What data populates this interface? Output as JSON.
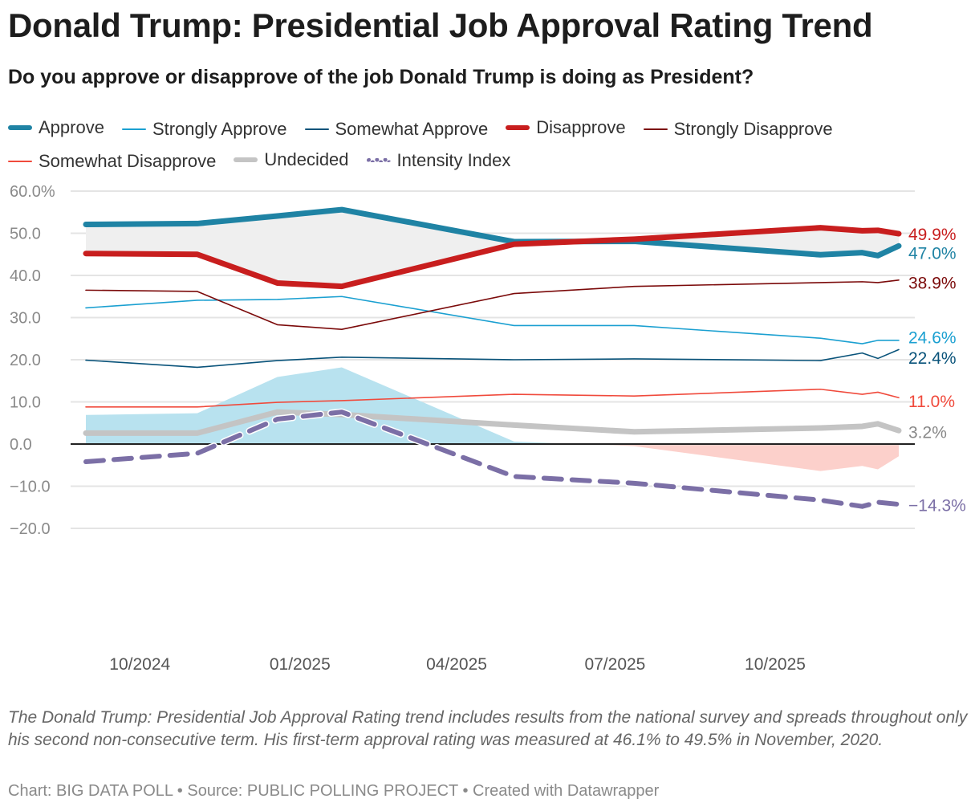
{
  "title": "Donald Trump: Presidential Job Approval Rating Trend",
  "subtitle": "Do you approve or disapprove of the job Donald Trump is doing as President?",
  "note": "The Donald Trump: Presidential Job Approval Rating trend includes results from the national survey and spreads throughout only his second non-consecutive term. His first-term approval rating was measured at 46.1% to 49.5% in November, 2020.",
  "credit": "Chart: BIG DATA POLL • Source: PUBLIC POLLING PROJECT • Created with Datawrapper",
  "chart_data": {
    "type": "line",
    "ylim": [
      -20,
      60
    ],
    "y_ticks": [
      "60.0%",
      "50.0",
      "40.0",
      "30.0",
      "20.0",
      "10.0",
      "0.0",
      "−10.0",
      "−20.0"
    ],
    "y_tick_values": [
      60,
      50,
      40,
      30,
      20,
      10,
      0,
      -10,
      -20
    ],
    "x_ticks": [
      "10/2024",
      "01/2025",
      "04/2025",
      "07/2025",
      "10/2025"
    ],
    "x_tick_dates": [
      "2024-10-01",
      "2025-01-01",
      "2025-04-01",
      "2025-07-01",
      "2025-10-01"
    ],
    "xlim": [
      "2024-08-31",
      "2025-12-11"
    ],
    "grid": true,
    "legend": "top",
    "x": [
      "2024-08-31",
      "2024-11-03",
      "2024-12-19",
      "2025-01-25",
      "2025-05-04",
      "2025-07-12",
      "2025-10-27",
      "2025-11-20",
      "2025-11-29",
      "2025-12-11"
    ],
    "areas": [
      {
        "between": [
          "Approve",
          "Disapprove"
        ],
        "color": "#efefef"
      },
      {
        "net": [
          "Approve",
          "Disapprove"
        ],
        "positive_color": "#b8e2ef",
        "negative_color": "#fcd0cb"
      }
    ],
    "series": [
      {
        "name": "Approve",
        "color": "#1f83a4",
        "width": 7,
        "dash": false,
        "end_label": "47.0%",
        "values": [
          52.1,
          52.3,
          54.1,
          55.6,
          48.0,
          48.1,
          44.9,
          45.4,
          44.7,
          47.0
        ]
      },
      {
        "name": "Strongly Approve",
        "color": "#1ba0d1",
        "width": 1.6,
        "dash": false,
        "end_label": "24.6%",
        "values": [
          32.3,
          34.1,
          34.3,
          35.0,
          28.1,
          28.1,
          25.1,
          23.8,
          24.6,
          24.6
        ]
      },
      {
        "name": "Somewhat Approve",
        "color": "#09537a",
        "width": 1.6,
        "dash": false,
        "end_label": "22.4%",
        "values": [
          19.9,
          18.2,
          19.8,
          20.6,
          20.0,
          20.2,
          19.8,
          21.6,
          20.3,
          22.4
        ]
      },
      {
        "name": "Disapprove",
        "color": "#c81e1e",
        "width": 7,
        "dash": false,
        "end_label": "49.9%",
        "values": [
          45.2,
          45.0,
          38.2,
          37.4,
          47.4,
          48.6,
          51.3,
          50.6,
          50.7,
          49.9
        ]
      },
      {
        "name": "Strongly Disapprove",
        "color": "#7b0a0a",
        "width": 1.6,
        "dash": false,
        "end_label": "38.9%",
        "values": [
          36.5,
          36.2,
          28.3,
          27.2,
          35.7,
          37.4,
          38.3,
          38.5,
          38.3,
          38.9
        ]
      },
      {
        "name": "Somewhat Disapprove",
        "color": "#f04a3c",
        "width": 1.6,
        "dash": false,
        "end_label": "11.0%",
        "values": [
          8.8,
          8.8,
          9.9,
          10.3,
          11.8,
          11.4,
          13.0,
          11.8,
          12.3,
          11.0
        ]
      },
      {
        "name": "Undecided",
        "color": "#c4c4c4",
        "width": 7,
        "dash": false,
        "end_label": "3.2%",
        "values": [
          2.6,
          2.6,
          7.6,
          7.0,
          4.5,
          2.9,
          3.8,
          4.2,
          4.8,
          3.2
        ]
      },
      {
        "name": "Intensity Index",
        "color": "#7b6fa6",
        "width": 6,
        "dash": true,
        "end_label": "−14.3%",
        "values": [
          -4.2,
          -2.2,
          5.9,
          7.6,
          -7.7,
          -9.3,
          -13.3,
          -14.8,
          -13.8,
          -14.3
        ]
      }
    ]
  }
}
